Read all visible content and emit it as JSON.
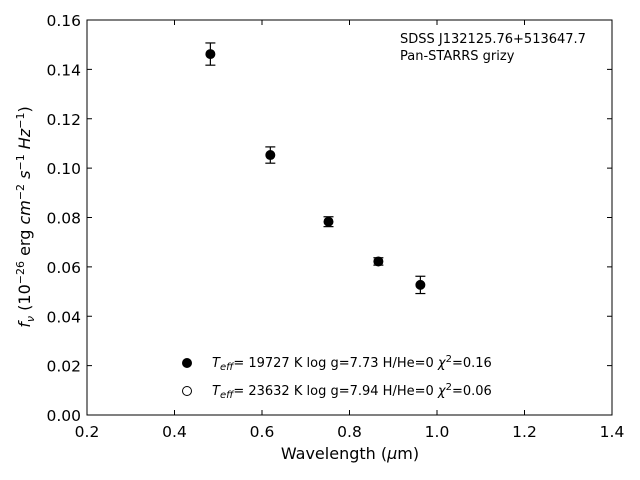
{
  "chart_data": {
    "type": "scatter",
    "xlabel": "Wavelength (μm)",
    "ylabel": "f_ν (10^-26 erg cm^-2 s^-1 Hz^-1)",
    "xlim": [
      0.2,
      1.4
    ],
    "ylim": [
      0.0,
      0.16
    ],
    "xticks": [
      "0.2",
      "0.4",
      "0.6",
      "0.8",
      "1.0",
      "1.2",
      "1.4"
    ],
    "yticks": [
      "0.00",
      "0.02",
      "0.04",
      "0.06",
      "0.08",
      "0.10",
      "0.12",
      "0.14",
      "0.16"
    ],
    "annotation": {
      "line1": "SDSS J132125.76+513647.7",
      "line2": "Pan-STARRS grizy"
    },
    "series": [
      {
        "name": "Teff= 19727 K  log g=7.73  H/He=0  χ2=0.16",
        "marker": "filled-circle",
        "points": [
          {
            "x": 0.482,
            "y": 0.1462,
            "err": 0.0045
          },
          {
            "x": 0.619,
            "y": 0.1053,
            "err": 0.0033
          },
          {
            "x": 0.752,
            "y": 0.0783,
            "err": 0.002
          },
          {
            "x": 0.866,
            "y": 0.0622,
            "err": 0.0015
          },
          {
            "x": 0.962,
            "y": 0.0527,
            "err": 0.0035
          }
        ]
      },
      {
        "name": "Teff= 23632 K  log g=7.94  H/He=0  χ2=0.06",
        "marker": "open-circle",
        "points": []
      }
    ],
    "legend_position": "bottom-center",
    "grid": false
  }
}
